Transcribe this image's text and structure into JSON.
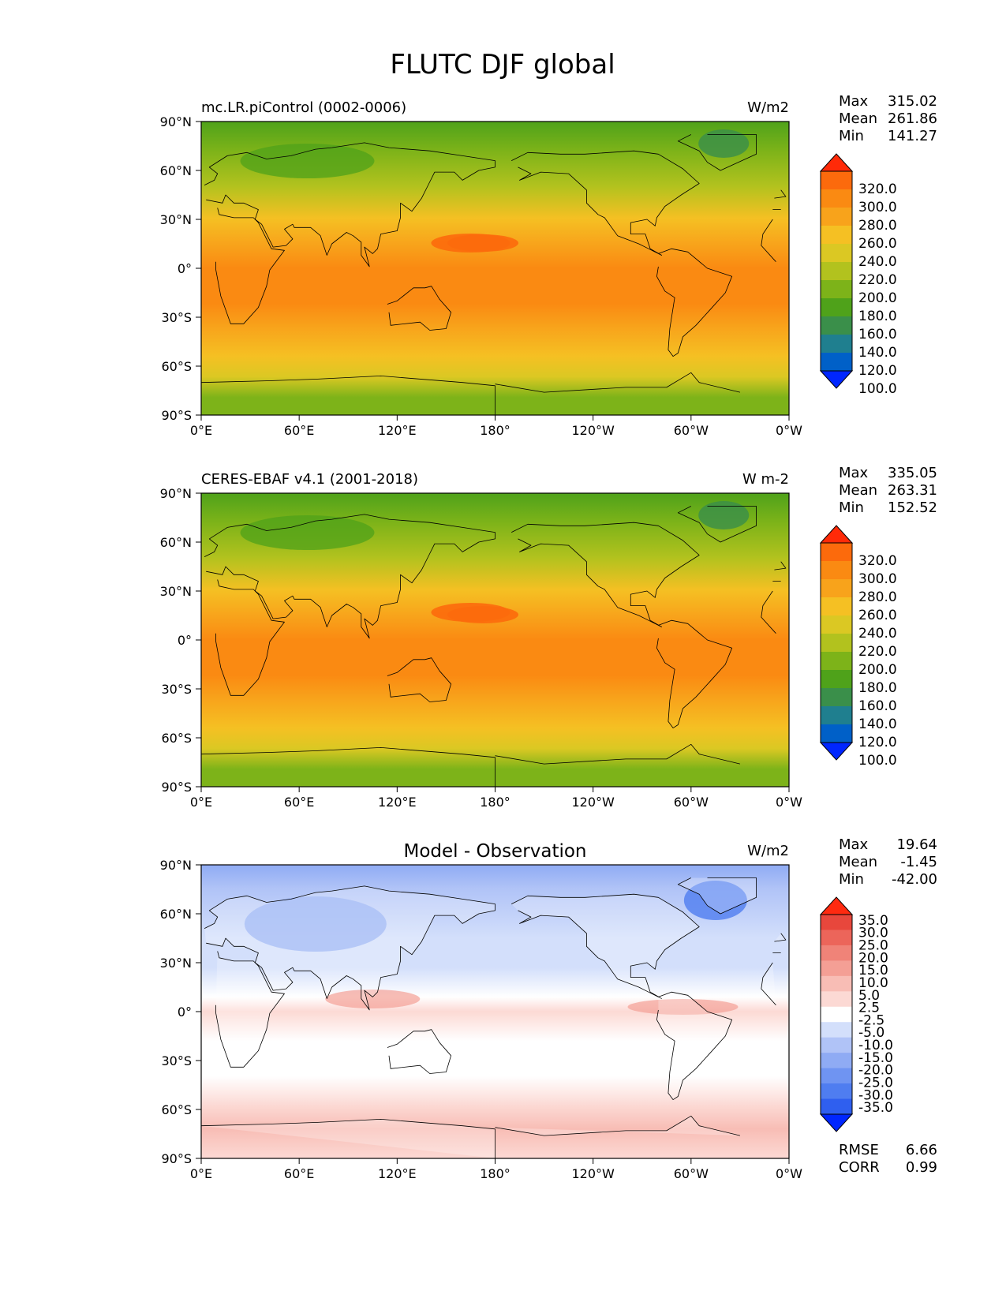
{
  "figure": {
    "title": "FLUTC DJF global"
  },
  "panels": [
    {
      "left_title": "mc.LR.piControl (0002-0006)",
      "center_title": "",
      "units": "W/m2",
      "kind": "field",
      "stats": [
        {
          "label": "Max",
          "value": "315.02"
        },
        {
          "label": "Mean",
          "value": "261.86"
        },
        {
          "label": "Min",
          "value": "141.27"
        }
      ],
      "colorbar_levels": [
        "320.0",
        "300.0",
        "280.0",
        "260.0",
        "240.0",
        "220.0",
        "200.0",
        "180.0",
        "160.0",
        "140.0",
        "120.0",
        "100.0"
      ],
      "extra_stats": []
    },
    {
      "left_title": "CERES-EBAF v4.1 (2001-2018)",
      "center_title": "",
      "units": "W m-2",
      "kind": "field",
      "stats": [
        {
          "label": "Max",
          "value": "335.05"
        },
        {
          "label": "Mean",
          "value": "263.31"
        },
        {
          "label": "Min",
          "value": "152.52"
        }
      ],
      "colorbar_levels": [
        "320.0",
        "300.0",
        "280.0",
        "260.0",
        "240.0",
        "220.0",
        "200.0",
        "180.0",
        "160.0",
        "140.0",
        "120.0",
        "100.0"
      ],
      "extra_stats": []
    },
    {
      "left_title": "",
      "center_title": "Model - Observation",
      "units": "W/m2",
      "kind": "diff",
      "stats": [
        {
          "label": "Max",
          "value": "19.64"
        },
        {
          "label": "Mean",
          "value": "-1.45"
        },
        {
          "label": "Min",
          "value": "-42.00"
        }
      ],
      "colorbar_levels": [
        "35.0",
        "30.0",
        "25.0",
        "20.0",
        "15.0",
        "10.0",
        "5.0",
        "2.5",
        "-2.5",
        "-5.0",
        "-10.0",
        "-15.0",
        "-20.0",
        "-25.0",
        "-30.0",
        "-35.0"
      ],
      "extra_stats": [
        {
          "label": "RMSE",
          "value": "6.66"
        },
        {
          "label": "CORR",
          "value": "0.99"
        }
      ]
    }
  ],
  "axes": {
    "lat_ticks": [
      "90°N",
      "60°N",
      "30°N",
      "0°",
      "30°S",
      "60°S",
      "90°S"
    ],
    "lon_ticks": [
      "0°E",
      "60°E",
      "120°E",
      "180°",
      "120°W",
      "60°W",
      "0°W"
    ]
  },
  "colors": {
    "field_scale": [
      "#0026ff",
      "#0060c8",
      "#1f7f8f",
      "#3a8f4a",
      "#4fa21a",
      "#7db319",
      "#b2c21e",
      "#dbc823",
      "#f5c023",
      "#f8a31b",
      "#fa8a12",
      "#fc6a0c",
      "#ff2a08"
    ],
    "diff_scale": [
      "#0026ff",
      "#2f5fef",
      "#4f7df0",
      "#6f94f2",
      "#8fabf4",
      "#b0c3f7",
      "#d3dffb",
      "#ffffff",
      "#fcd9d4",
      "#f8bdb5",
      "#f49f95",
      "#f08378",
      "#ec655a",
      "#e8473c",
      "#ff2a10"
    ]
  }
}
